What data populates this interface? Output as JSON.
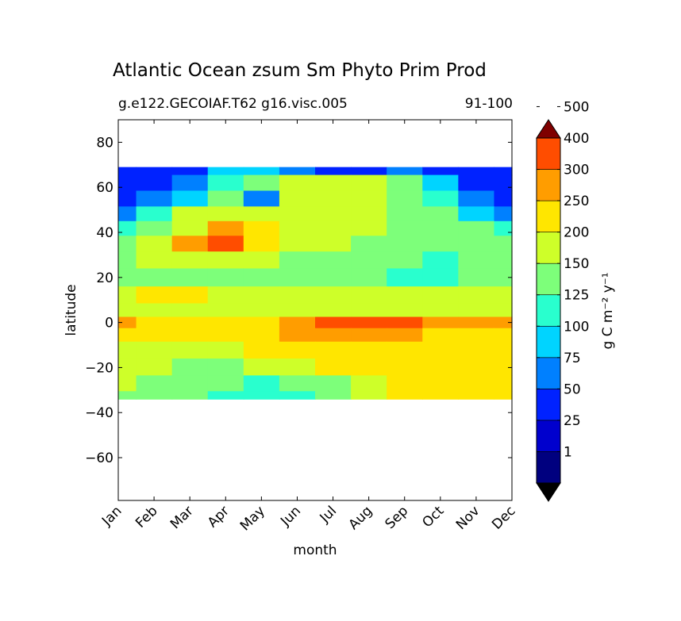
{
  "chart_data": {
    "type": "heatmap",
    "title": "Atlantic Ocean zsum Sm Phyto Prim Prod",
    "subtitle_left": "g.e122.GECOIAF.T62 g16.visc.005",
    "subtitle_right": "91-100",
    "xlabel": "month",
    "ylabel": "latitude",
    "x_ticks": [
      "Jan",
      "Feb",
      "Mar",
      "Apr",
      "May",
      "Jun",
      "Jul",
      "Aug",
      "Sep",
      "Oct",
      "Nov",
      "Dec"
    ],
    "y_ticks": [
      80,
      60,
      40,
      20,
      0,
      -20,
      -40,
      -60
    ],
    "ylim": [
      -79,
      90
    ],
    "data_lat_range": [
      -34,
      69
    ],
    "colorbar": {
      "label": "g C m⁻² y⁻¹",
      "tick_labels": [
        "1",
        "25",
        "50",
        "75",
        "100",
        "125",
        "150",
        "200",
        "250",
        "300",
        "400",
        "500"
      ],
      "colors": [
        "#00007f",
        "#0000cd",
        "#0022ff",
        "#0080ff",
        "#00d4ff",
        "#29ffce",
        "#7dff7a",
        "#ceff29",
        "#ffe600",
        "#ff9d00",
        "#ff4d00",
        "#e60000",
        "#7f0000"
      ],
      "extend": "both"
    },
    "latitude_bands": [
      {
        "lat": 69,
        "values": [
          25,
          25,
          25,
          75,
          75,
          50,
          25,
          25,
          50,
          25,
          25,
          25
        ]
      },
      {
        "lat": 62,
        "values": [
          25,
          25,
          50,
          100,
          125,
          150,
          150,
          150,
          125,
          75,
          25,
          25
        ]
      },
      {
        "lat": 55,
        "values": [
          25,
          50,
          75,
          125,
          50,
          150,
          150,
          150,
          125,
          100,
          50,
          25
        ]
      },
      {
        "lat": 48,
        "values": [
          50,
          100,
          150,
          150,
          150,
          150,
          150,
          150,
          125,
          125,
          75,
          50
        ]
      },
      {
        "lat": 42,
        "values": [
          100,
          125,
          175,
          250,
          200,
          150,
          150,
          150,
          125,
          125,
          125,
          100
        ]
      },
      {
        "lat": 35,
        "values": [
          125,
          150,
          250,
          300,
          200,
          150,
          150,
          125,
          125,
          125,
          125,
          125
        ]
      },
      {
        "lat": 28,
        "values": [
          125,
          150,
          150,
          150,
          150,
          125,
          125,
          125,
          125,
          100,
          125,
          125
        ]
      },
      {
        "lat": 20,
        "values": [
          125,
          125,
          125,
          125,
          125,
          125,
          125,
          125,
          100,
          100,
          125,
          125
        ]
      },
      {
        "lat": 12,
        "values": [
          150,
          200,
          200,
          150,
          150,
          150,
          150,
          150,
          150,
          150,
          150,
          150
        ]
      },
      {
        "lat": 5,
        "values": [
          150,
          150,
          150,
          150,
          150,
          150,
          150,
          150,
          150,
          150,
          150,
          150
        ]
      },
      {
        "lat": 0,
        "values": [
          250,
          200,
          200,
          200,
          200,
          250,
          300,
          300,
          300,
          250,
          250,
          250
        ]
      },
      {
        "lat": -5,
        "values": [
          200,
          200,
          200,
          200,
          200,
          250,
          250,
          250,
          250,
          200,
          200,
          200
        ]
      },
      {
        "lat": -12,
        "values": [
          150,
          150,
          150,
          150,
          200,
          200,
          200,
          200,
          200,
          200,
          200,
          200
        ]
      },
      {
        "lat": -20,
        "values": [
          150,
          150,
          125,
          125,
          150,
          150,
          200,
          200,
          200,
          200,
          200,
          200
        ]
      },
      {
        "lat": -27,
        "values": [
          150,
          125,
          125,
          125,
          100,
          125,
          125,
          150,
          200,
          200,
          200,
          200
        ]
      },
      {
        "lat": -34,
        "values": [
          125,
          125,
          125,
          100,
          100,
          100,
          125,
          150,
          200,
          200,
          200,
          200
        ]
      }
    ]
  }
}
